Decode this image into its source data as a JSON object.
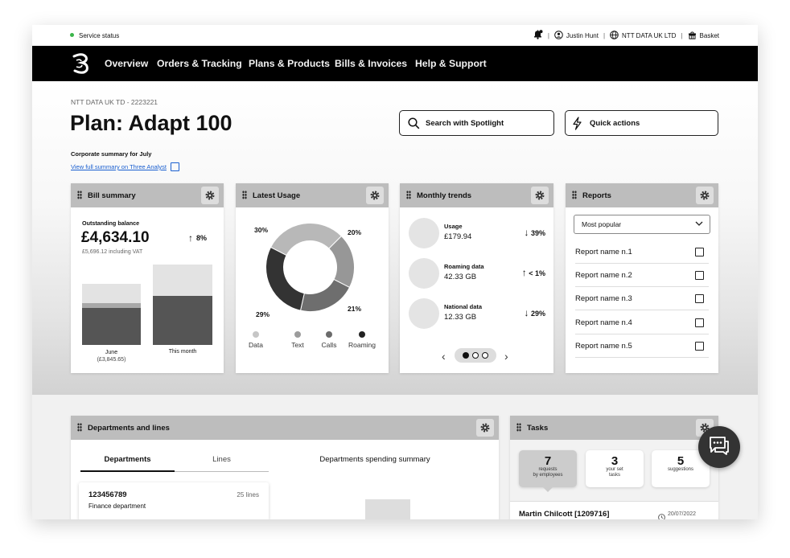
{
  "util": {
    "status": "Service status",
    "user": "Justin Hunt",
    "company": "NTT DATA UK LTD",
    "basket": "Basket",
    "separator": "|"
  },
  "nav": {
    "items": [
      "Overview",
      "Orders & Tracking",
      "Plans & Products",
      "Bills & Invoices",
      "Help & Support"
    ]
  },
  "header": {
    "account": "NTT DATA UK TD - 2223221",
    "plan_title": "Plan: Adapt 100",
    "corporate_summary": "Corporate summary for July",
    "view_link": "View full summary on Three Analyst",
    "search_button": "Search with Spotlight",
    "quick_actions_button": "Quick actions"
  },
  "bill_summary": {
    "title": "Bill summary",
    "label": "Outstanding balance",
    "amount": "£4,634.10",
    "change": "8%",
    "incl_vat": "£5,696.12 including VAT",
    "bars": [
      {
        "label": "June",
        "sublabel": "(£3,845.65)"
      },
      {
        "label": "This month",
        "sublabel": ""
      }
    ]
  },
  "latest_usage": {
    "title": "Latest Usage",
    "segments": [
      {
        "name": "Data",
        "pct": 30,
        "label": "30%",
        "color": "#b8b8b8"
      },
      {
        "name": "Text",
        "pct": 20,
        "label": "20%",
        "color": "#979797"
      },
      {
        "name": "Calls",
        "pct": 21,
        "label": "21%",
        "color": "#6e6e6e"
      },
      {
        "name": "Roaming",
        "pct": 29,
        "label": "29%",
        "color": "#333333"
      }
    ]
  },
  "monthly_trends": {
    "title": "Monthly trends",
    "rows": [
      {
        "label": "Usage",
        "value": "£179.94",
        "change": "39%",
        "dir": "down"
      },
      {
        "label": "Roaming data",
        "value": "42.33 GB",
        "change": "< 1%",
        "dir": "up"
      },
      {
        "label": "National data",
        "value": "12.33 GB",
        "change": "29%",
        "dir": "down"
      }
    ],
    "pager": {
      "pages": 3,
      "current": 1
    }
  },
  "reports": {
    "title": "Reports",
    "select_value": "Most popular",
    "items": [
      "Report name n.1",
      "Report name n.2",
      "Report name n.3",
      "Report name n.4",
      "Report name n.5"
    ]
  },
  "departments": {
    "title": "Departments and lines",
    "tabs": [
      "Departments",
      "Lines"
    ],
    "active_tab": "Departments",
    "spending_title": "Departments spending summary",
    "row": {
      "id": "123456789",
      "lines": "25 lines",
      "name": "Finance department"
    }
  },
  "tasks": {
    "title": "Tasks",
    "tiles": [
      {
        "n": "7",
        "line1": "requests",
        "line2": "by employees"
      },
      {
        "n": "3",
        "line1": "your set",
        "line2": "tasks"
      },
      {
        "n": "5",
        "line1": "suggestions",
        "line2": ""
      }
    ],
    "entry": {
      "name": "Martin Chilcott [1209716]",
      "date": "20/07/2022"
    }
  }
}
